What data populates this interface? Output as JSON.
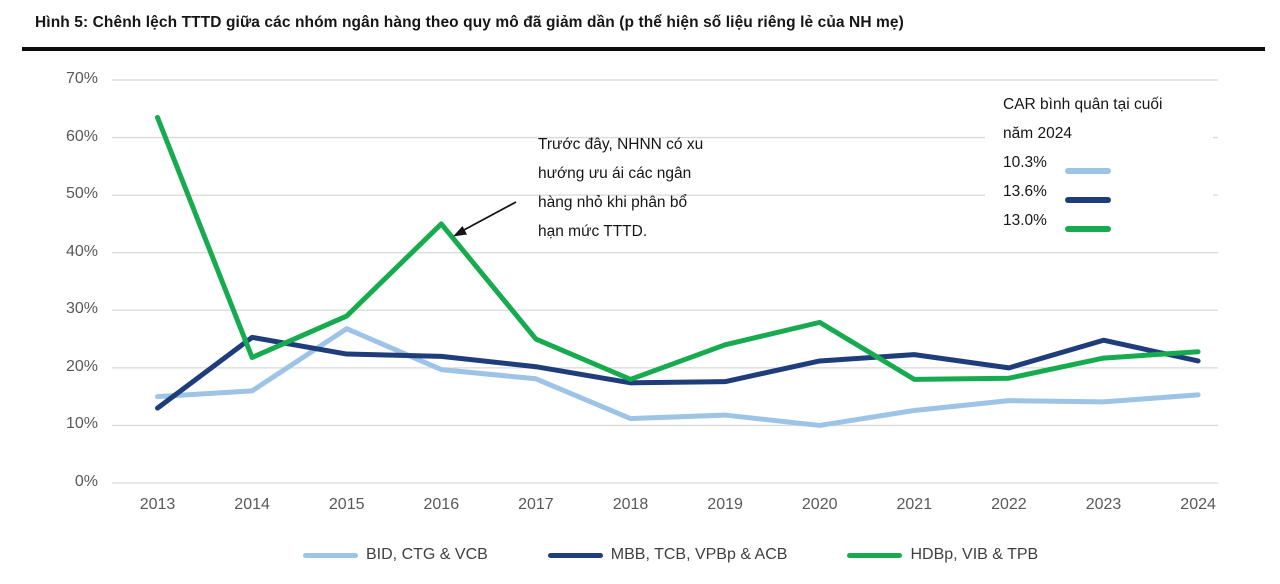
{
  "header": {
    "title": "Hình 5: Chênh lệch TTTD giữa các nhóm ngân hàng theo quy mô đã giảm dần (p thể hiện số liệu riêng lẻ của NH mẹ)"
  },
  "chart_data": {
    "type": "line",
    "categories": [
      "2013",
      "2014",
      "2015",
      "2016",
      "2017",
      "2018",
      "2019",
      "2020",
      "2021",
      "2022",
      "2023",
      "2024"
    ],
    "series": [
      {
        "name": "BID, CTG & VCB",
        "color": "#9DC3E6",
        "values": [
          15.0,
          16.0,
          26.8,
          19.7,
          18.1,
          11.2,
          11.8,
          10.0,
          12.6,
          14.3,
          14.1,
          15.3
        ]
      },
      {
        "name": "MBB, TCB, VPBp & ACB",
        "color": "#1F3D7A",
        "values": [
          13.0,
          25.3,
          22.4,
          22.0,
          20.2,
          17.4,
          17.6,
          21.2,
          22.3,
          20.0,
          24.8,
          21.2
        ]
      },
      {
        "name": "HDBp, VIB & TPB",
        "color": "#17AB4F",
        "values": [
          63.5,
          21.8,
          29.0,
          45.0,
          25.0,
          18.0,
          24.0,
          27.9,
          18.0,
          18.2,
          21.7,
          22.8
        ]
      }
    ],
    "ylim": [
      0,
      70
    ],
    "y_tick_step": 10,
    "y_tick_suffix": "%",
    "grid": "horizontal",
    "legend_position": "bottom"
  },
  "annotation": {
    "lines": [
      "Trước đây, NHNN có xu",
      "hướng ưu ái các ngân",
      "hàng nhỏ khi phân bổ",
      "hạn mức TTTD."
    ]
  },
  "car_legend": {
    "title_lines": [
      "CAR bình quân tại cuối",
      "năm 2024"
    ],
    "rows": [
      {
        "value": "10.3%",
        "color": "#9DC3E6"
      },
      {
        "value": "13.6%",
        "color": "#1F3D7A"
      },
      {
        "value": "13.0%",
        "color": "#17AB4F"
      }
    ]
  }
}
